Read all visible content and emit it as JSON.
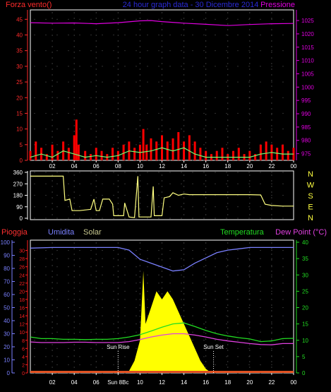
{
  "header": {
    "left_label": "Forza vento()",
    "center_label": "24 hour graph data - 30 Dicembre 2014",
    "right_label": "Pressione"
  },
  "colors": {
    "wind_axis": "#ff2b2b",
    "pressure_axis": "#e000e0",
    "title": "#2a2ad8",
    "humidity": "#7a80ff",
    "solar_label": "#c8c890",
    "temperature": "#22dd22",
    "dewpoint": "#e040e0",
    "rain": "#ff2020",
    "gust": "#ff0000",
    "wind_speed": "#70ff70",
    "wind_dir": "#ffff80",
    "solar": "#ffff00"
  },
  "chart_data": [
    {
      "type": "bar",
      "name": "wind-pressure",
      "x_ticks": [
        "02",
        "04",
        "06",
        "08",
        "10",
        "12",
        "14",
        "16",
        "18",
        "20",
        "22",
        "00"
      ],
      "y_left_ticks": [
        "0",
        "5",
        "10",
        "15",
        "20",
        "25",
        "30",
        "35",
        "40",
        "45"
      ],
      "y_left_range": [
        0,
        48
      ],
      "y_right_ticks": [
        "975",
        "980",
        "985",
        "990",
        "995",
        "1000",
        "1005",
        "1010",
        "1015",
        "1020",
        "1025"
      ],
      "y_right_range": [
        972.5,
        1029
      ],
      "pressure": [
        [
          0,
          1024.2
        ],
        [
          2,
          1024.0
        ],
        [
          4,
          1024.1
        ],
        [
          6,
          1023.8
        ],
        [
          8,
          1024.2
        ],
        [
          10,
          1024.9
        ],
        [
          11,
          1025.0
        ],
        [
          12,
          1024.6
        ],
        [
          14,
          1024.0
        ],
        [
          16,
          1023.6
        ],
        [
          18,
          1023.1
        ],
        [
          20,
          1023.5
        ],
        [
          22,
          1023.8
        ],
        [
          24,
          1023.9
        ]
      ],
      "gust": [
        [
          0,
          3
        ],
        [
          0.5,
          6
        ],
        [
          1,
          4
        ],
        [
          1.5,
          2
        ],
        [
          2,
          5
        ],
        [
          2.5,
          3
        ],
        [
          3,
          6
        ],
        [
          3.5,
          4
        ],
        [
          4,
          8
        ],
        [
          4.2,
          13
        ],
        [
          4.4,
          5
        ],
        [
          5,
          3
        ],
        [
          5.5,
          2
        ],
        [
          6,
          4
        ],
        [
          6.5,
          3
        ],
        [
          7,
          2
        ],
        [
          7.5,
          4
        ],
        [
          8,
          3
        ],
        [
          8.5,
          5
        ],
        [
          9,
          6
        ],
        [
          9.5,
          4
        ],
        [
          10,
          5
        ],
        [
          10.3,
          10
        ],
        [
          10.6,
          5
        ],
        [
          11,
          7
        ],
        [
          11.5,
          6
        ],
        [
          12,
          8
        ],
        [
          12.5,
          6
        ],
        [
          13,
          7
        ],
        [
          13.5,
          9
        ],
        [
          14,
          6
        ],
        [
          14.5,
          8
        ],
        [
          15,
          6
        ],
        [
          15.5,
          4
        ],
        [
          16,
          3
        ],
        [
          16.5,
          2
        ],
        [
          17,
          3
        ],
        [
          17.5,
          4
        ],
        [
          18,
          2
        ],
        [
          18.5,
          3
        ],
        [
          19,
          4
        ],
        [
          19.5,
          2
        ],
        [
          20,
          3
        ],
        [
          20.5,
          2
        ],
        [
          21,
          5
        ],
        [
          21.5,
          6
        ],
        [
          22,
          5
        ],
        [
          22.5,
          4
        ],
        [
          23,
          5
        ],
        [
          23.5,
          3
        ],
        [
          24,
          4
        ]
      ],
      "wind_speed": [
        [
          0,
          1
        ],
        [
          1,
          2
        ],
        [
          2,
          1
        ],
        [
          3,
          3
        ],
        [
          4,
          2
        ],
        [
          5,
          1
        ],
        [
          6,
          1.5
        ],
        [
          7,
          1
        ],
        [
          8,
          1.5
        ],
        [
          9,
          3
        ],
        [
          10,
          2.5
        ],
        [
          11,
          3
        ],
        [
          12,
          4
        ],
        [
          13,
          3
        ],
        [
          14,
          4
        ],
        [
          15,
          2
        ],
        [
          16,
          1
        ],
        [
          17,
          1
        ],
        [
          18,
          1
        ],
        [
          19,
          1
        ],
        [
          20,
          1
        ],
        [
          21,
          2
        ],
        [
          22,
          2.5
        ],
        [
          23,
          2
        ],
        [
          24,
          2
        ]
      ]
    },
    {
      "type": "line",
      "name": "wind-direction",
      "y_left_ticks": [
        "0",
        "90",
        "180",
        "270",
        "360"
      ],
      "y_range": [
        0,
        360
      ],
      "y_right_labels": [
        "N",
        "W",
        "S",
        "E",
        "N"
      ],
      "direction": [
        [
          0,
          330
        ],
        [
          2,
          330
        ],
        [
          3,
          330
        ],
        [
          3.15,
          140
        ],
        [
          3.6,
          150
        ],
        [
          3.8,
          60
        ],
        [
          4.5,
          60
        ],
        [
          5.5,
          70
        ],
        [
          5.8,
          150
        ],
        [
          6,
          60
        ],
        [
          6.3,
          60
        ],
        [
          6.6,
          150
        ],
        [
          7.2,
          150
        ],
        [
          7.5,
          110
        ],
        [
          7.6,
          20
        ],
        [
          8.5,
          20
        ],
        [
          8.6,
          120
        ],
        [
          9,
          10
        ],
        [
          9.5,
          5
        ],
        [
          9.8,
          330
        ],
        [
          9.9,
          10
        ],
        [
          11,
          10
        ],
        [
          11.2,
          250
        ],
        [
          11.3,
          20
        ],
        [
          12,
          20
        ],
        [
          12.2,
          160
        ],
        [
          12.7,
          170
        ],
        [
          13,
          200
        ],
        [
          13.5,
          180
        ],
        [
          14,
          190
        ],
        [
          14.5,
          185
        ],
        [
          16,
          185
        ],
        [
          18,
          185
        ],
        [
          20,
          185
        ],
        [
          21,
          183
        ],
        [
          21.4,
          110
        ],
        [
          22,
          100
        ],
        [
          23,
          95
        ],
        [
          24,
          95
        ]
      ]
    },
    {
      "type": "line",
      "name": "temp-humidity-solar",
      "x_ticks": [
        "02",
        "04",
        "06",
        "08",
        "10",
        "12",
        "14",
        "16",
        "18",
        "20",
        "22",
        "00"
      ],
      "x_tick_08_label": "Sun 8Bc",
      "y_left_outer_ticks": [
        "0",
        "10",
        "20",
        "30",
        "40",
        "50",
        "60",
        "70",
        "80",
        "90",
        "100"
      ],
      "y_left_outer_range": [
        0,
        100
      ],
      "y_left_inner_ticks": [
        "0",
        "2",
        "4",
        "6",
        "8",
        "10",
        "12",
        "14",
        "16",
        "18",
        "20",
        "22",
        "24",
        "26",
        "28",
        "30"
      ],
      "y_left_inner_range": [
        0,
        32
      ],
      "y_right_ticks": [
        "0",
        "5",
        "10",
        "15",
        "20",
        "25",
        "30",
        "35",
        "40"
      ],
      "y_right_range": [
        0,
        40
      ],
      "humidity": [
        [
          0,
          95.5
        ],
        [
          2,
          96
        ],
        [
          4,
          96
        ],
        [
          6,
          96
        ],
        [
          8,
          96
        ],
        [
          9,
          94
        ],
        [
          10,
          87
        ],
        [
          11,
          84
        ],
        [
          12,
          81
        ],
        [
          13,
          78
        ],
        [
          14,
          79
        ],
        [
          15,
          84
        ],
        [
          16,
          88
        ],
        [
          17,
          92
        ],
        [
          18,
          94
        ],
        [
          19,
          95
        ],
        [
          20,
          96
        ],
        [
          22,
          96
        ],
        [
          24,
          96
        ]
      ],
      "temperature": [
        [
          0,
          11
        ],
        [
          1,
          10.5
        ],
        [
          2,
          10.5
        ],
        [
          3,
          10.3
        ],
        [
          4,
          10.3
        ],
        [
          5,
          10.2
        ],
        [
          6,
          10.3
        ],
        [
          7,
          10.3
        ],
        [
          8,
          10.5
        ],
        [
          9,
          11
        ],
        [
          10,
          11.7
        ],
        [
          11,
          12.8
        ],
        [
          12,
          14
        ],
        [
          13,
          15
        ],
        [
          14,
          15.3
        ],
        [
          15,
          14.2
        ],
        [
          16,
          13
        ],
        [
          17,
          12
        ],
        [
          18,
          11.3
        ],
        [
          19,
          10.8
        ],
        [
          20,
          10.4
        ],
        [
          21,
          9.6
        ],
        [
          22,
          9.8
        ],
        [
          23,
          10.5
        ],
        [
          24,
          10.6
        ]
      ],
      "dewpoint": [
        [
          0,
          9.5
        ],
        [
          1,
          9.3
        ],
        [
          2,
          9.3
        ],
        [
          3,
          9.3
        ],
        [
          4,
          9.4
        ],
        [
          5,
          9.4
        ],
        [
          6,
          9.3
        ],
        [
          7,
          9.3
        ],
        [
          8,
          9.3
        ],
        [
          9,
          9.6
        ],
        [
          10,
          10.2
        ],
        [
          11,
          11
        ],
        [
          12,
          11.6
        ],
        [
          13,
          12
        ],
        [
          14,
          12
        ],
        [
          15,
          11.6
        ],
        [
          16,
          11
        ],
        [
          17,
          10.3
        ],
        [
          18,
          9.8
        ],
        [
          19,
          9.4
        ],
        [
          20,
          9
        ],
        [
          21,
          8.7
        ],
        [
          22,
          8.6
        ],
        [
          23,
          9
        ],
        [
          24,
          9
        ]
      ],
      "solar": [
        [
          0,
          0
        ],
        [
          8,
          0
        ],
        [
          9,
          0.5
        ],
        [
          9.5,
          3
        ],
        [
          10,
          8
        ],
        [
          10.3,
          25
        ],
        [
          10.5,
          12
        ],
        [
          11,
          16
        ],
        [
          11.5,
          20
        ],
        [
          12,
          18
        ],
        [
          12.5,
          20
        ],
        [
          13,
          18
        ],
        [
          13.5,
          15
        ],
        [
          14,
          12
        ],
        [
          14.5,
          9
        ],
        [
          15,
          6
        ],
        [
          15.5,
          3
        ],
        [
          16,
          1
        ],
        [
          16.5,
          0
        ],
        [
          24,
          0
        ]
      ],
      "rain_total": 0,
      "sun_rise_label": "Sun Rise",
      "sun_rise_hour": 8.0,
      "sun_set_label": "Sun Set",
      "sun_set_hour": 16.7
    }
  ],
  "panels": {
    "wind_dir_right_labels": [
      "N",
      "W",
      "S",
      "E",
      "N"
    ],
    "bottom_header": {
      "rain": "Pioggia",
      "humidity": "Umidita",
      "solar": "Solar",
      "temperature": "Temperatura",
      "dewpoint": "Dew Point (°C)"
    }
  }
}
